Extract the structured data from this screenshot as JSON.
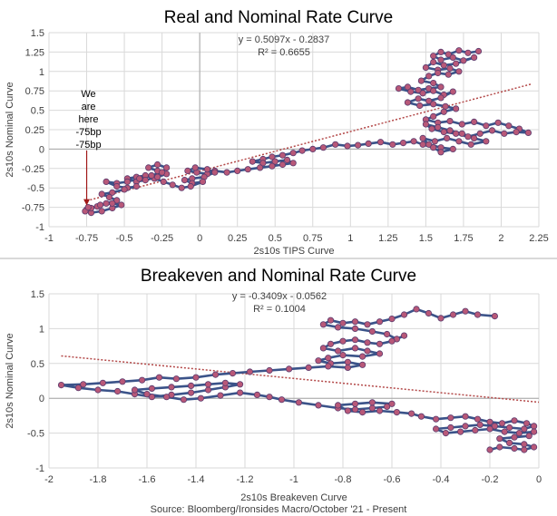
{
  "source": "Source: Bloomberg/Ironsides Macro/October '21 - Present",
  "colors": {
    "line": "#3b5389",
    "marker_fill": "#b85878",
    "marker_edge": "#5b3b6e",
    "trend": "#b34848",
    "grid": "#d9d9d9",
    "arrow": "#a01818"
  },
  "chart_data": [
    {
      "type": "scatter",
      "title": "Real and Nominal Rate Curve",
      "xlabel": "2s10s TIPS Curve",
      "ylabel": "2s10s Nominal Curve",
      "xlim": [
        -1,
        2.25
      ],
      "ylim": [
        -1,
        1.5
      ],
      "xticks": [
        "-1",
        "-0.75",
        "-0.5",
        "-0.25",
        "0",
        "0.25",
        "0.5",
        "0.75",
        "1",
        "1.25",
        "1.5",
        "1.75",
        "2",
        "2.25"
      ],
      "yticks": [
        "-1",
        "-0.75",
        "-0.5",
        "-0.25",
        "0",
        "0.25",
        "0.5",
        "0.75",
        "1",
        "1.25",
        "1.5"
      ],
      "equation": "y = 0.5097x - 0.2837",
      "r2": "R² = 0.6655",
      "trendline": {
        "slope": 0.5097,
        "intercept": -0.2837,
        "x_range": [
          -0.75,
          2.2
        ]
      },
      "annotation": {
        "lines": [
          "We",
          "are",
          "here",
          "-75bp",
          "-75bp"
        ],
        "x": -0.75,
        "y": -0.75
      },
      "points": [
        [
          1.85,
          1.26
        ],
        [
          1.78,
          1.24
        ],
        [
          1.72,
          1.27
        ],
        [
          1.65,
          1.22
        ],
        [
          1.6,
          1.25
        ],
        [
          1.55,
          1.2
        ],
        [
          1.6,
          1.15
        ],
        [
          1.68,
          1.18
        ],
        [
          1.75,
          1.14
        ],
        [
          1.82,
          1.18
        ],
        [
          1.7,
          1.1
        ],
        [
          1.62,
          1.08
        ],
        [
          1.55,
          1.12
        ],
        [
          1.5,
          1.05
        ],
        [
          1.58,
          1.02
        ],
        [
          1.66,
          1.04
        ],
        [
          1.72,
          1.0
        ],
        [
          1.65,
          0.96
        ],
        [
          1.58,
          0.98
        ],
        [
          1.52,
          0.94
        ],
        [
          1.47,
          0.88
        ],
        [
          1.55,
          0.85
        ],
        [
          1.6,
          0.8
        ],
        [
          1.52,
          0.78
        ],
        [
          1.45,
          0.76
        ],
        [
          1.38,
          0.8
        ],
        [
          1.32,
          0.78
        ],
        [
          1.4,
          0.74
        ],
        [
          1.48,
          0.72
        ],
        [
          1.55,
          0.75
        ],
        [
          1.62,
          0.7
        ],
        [
          1.68,
          0.74
        ],
        [
          1.6,
          0.66
        ],
        [
          1.52,
          0.62
        ],
        [
          1.45,
          0.65
        ],
        [
          1.38,
          0.6
        ],
        [
          1.46,
          0.56
        ],
        [
          1.55,
          0.58
        ],
        [
          1.63,
          0.55
        ],
        [
          1.7,
          0.52
        ],
        [
          1.62,
          0.48
        ],
        [
          1.55,
          0.42
        ],
        [
          1.5,
          0.38
        ],
        [
          1.58,
          0.34
        ],
        [
          1.66,
          0.36
        ],
        [
          1.74,
          0.32
        ],
        [
          1.82,
          0.35
        ],
        [
          1.9,
          0.3
        ],
        [
          1.98,
          0.34
        ],
        [
          2.05,
          0.3
        ],
        [
          2.12,
          0.26
        ],
        [
          2.18,
          0.21
        ],
        [
          2.1,
          0.22
        ],
        [
          2.02,
          0.2
        ],
        [
          1.94,
          0.24
        ],
        [
          1.86,
          0.2
        ],
        [
          1.78,
          0.16
        ],
        [
          1.7,
          0.2
        ],
        [
          1.62,
          0.22
        ],
        [
          1.54,
          0.26
        ],
        [
          1.5,
          0.32
        ],
        [
          1.58,
          0.28
        ],
        [
          1.66,
          0.24
        ],
        [
          1.74,
          0.2
        ],
        [
          1.82,
          0.14
        ],
        [
          1.9,
          0.1
        ],
        [
          1.8,
          0.06
        ],
        [
          1.72,
          0.1
        ],
        [
          1.64,
          0.14
        ],
        [
          1.56,
          0.1
        ],
        [
          1.48,
          0.14
        ],
        [
          1.52,
          0.06
        ],
        [
          1.6,
          0.02
        ],
        [
          1.68,
          0.0
        ],
        [
          1.6,
          -0.04
        ],
        [
          1.55,
          0.02
        ],
        [
          1.48,
          0.06
        ],
        [
          1.42,
          0.1
        ],
        [
          1.35,
          0.08
        ],
        [
          1.28,
          0.06
        ],
        [
          1.2,
          0.09
        ],
        [
          1.12,
          0.07
        ],
        [
          1.05,
          0.05
        ],
        [
          0.98,
          0.04
        ],
        [
          0.9,
          0.06
        ],
        [
          0.82,
          0.02
        ],
        [
          0.75,
          0.0
        ],
        [
          0.68,
          -0.02
        ],
        [
          0.62,
          -0.05
        ],
        [
          0.55,
          -0.08
        ],
        [
          0.48,
          -0.1
        ],
        [
          0.42,
          -0.13
        ],
        [
          0.35,
          -0.16
        ],
        [
          0.42,
          -0.18
        ],
        [
          0.5,
          -0.16
        ],
        [
          0.58,
          -0.14
        ],
        [
          0.62,
          -0.18
        ],
        [
          0.55,
          -0.2
        ],
        [
          0.48,
          -0.22
        ],
        [
          0.4,
          -0.24
        ],
        [
          0.32,
          -0.26
        ],
        [
          0.25,
          -0.28
        ],
        [
          0.18,
          -0.3
        ],
        [
          0.1,
          -0.28
        ],
        [
          0.05,
          -0.32
        ],
        [
          -0.02,
          -0.3
        ],
        [
          -0.08,
          -0.28
        ],
        [
          -0.03,
          -0.24
        ],
        [
          0.05,
          -0.26
        ],
        [
          0.1,
          -0.3
        ],
        [
          0.03,
          -0.36
        ],
        [
          -0.05,
          -0.38
        ],
        [
          -0.1,
          -0.4
        ],
        [
          -0.05,
          -0.44
        ],
        [
          0.02,
          -0.42
        ],
        [
          -0.06,
          -0.48
        ],
        [
          -0.12,
          -0.5
        ],
        [
          -0.18,
          -0.46
        ],
        [
          -0.24,
          -0.42
        ],
        [
          -0.3,
          -0.38
        ],
        [
          -0.36,
          -0.34
        ],
        [
          -0.42,
          -0.36
        ],
        [
          -0.48,
          -0.38
        ],
        [
          -0.42,
          -0.42
        ],
        [
          -0.36,
          -0.4
        ],
        [
          -0.28,
          -0.36
        ],
        [
          -0.22,
          -0.32
        ],
        [
          -0.28,
          -0.28
        ],
        [
          -0.34,
          -0.24
        ],
        [
          -0.28,
          -0.2
        ],
        [
          -0.22,
          -0.24
        ],
        [
          -0.25,
          -0.3
        ],
        [
          -0.32,
          -0.34
        ],
        [
          -0.4,
          -0.38
        ],
        [
          -0.48,
          -0.42
        ],
        [
          -0.55,
          -0.44
        ],
        [
          -0.62,
          -0.42
        ],
        [
          -0.55,
          -0.48
        ],
        [
          -0.48,
          -0.5
        ],
        [
          -0.42,
          -0.48
        ],
        [
          -0.5,
          -0.52
        ],
        [
          -0.58,
          -0.56
        ],
        [
          -0.65,
          -0.58
        ],
        [
          -0.6,
          -0.62
        ],
        [
          -0.55,
          -0.66
        ],
        [
          -0.62,
          -0.7
        ],
        [
          -0.68,
          -0.74
        ],
        [
          -0.75,
          -0.78
        ],
        [
          -0.72,
          -0.82
        ],
        [
          -0.65,
          -0.8
        ],
        [
          -0.58,
          -0.76
        ],
        [
          -0.52,
          -0.72
        ],
        [
          -0.58,
          -0.7
        ],
        [
          -0.66,
          -0.72
        ],
        [
          -0.72,
          -0.76
        ],
        [
          -0.76,
          -0.8
        ],
        [
          -0.74,
          -0.75
        ]
      ]
    },
    {
      "type": "scatter",
      "title": "Breakeven and Nominal Rate Curve",
      "xlabel": "2s10s Breakeven Curve",
      "ylabel": "2s10s Nominal Curve",
      "xlim": [
        -2,
        0
      ],
      "ylim": [
        -1,
        1.5
      ],
      "xticks": [
        "-2",
        "-1.8",
        "-1.6",
        "-1.4",
        "-1.2",
        "-1",
        "-0.8",
        "-0.6",
        "-0.4",
        "-0.2",
        "0"
      ],
      "yticks": [
        "-1",
        "-0.5",
        "0",
        "0.5",
        "1",
        "1.5"
      ],
      "equation": "y = -0.3409x - 0.0562",
      "r2": "R² = 0.1004",
      "trendline": {
        "slope": -0.3409,
        "intercept": -0.0562,
        "x_range": [
          -1.95,
          0
        ]
      },
      "points": [
        [
          -0.18,
          1.18
        ],
        [
          -0.25,
          1.2
        ],
        [
          -0.3,
          1.25
        ],
        [
          -0.35,
          1.2
        ],
        [
          -0.4,
          1.15
        ],
        [
          -0.45,
          1.22
        ],
        [
          -0.5,
          1.28
        ],
        [
          -0.55,
          1.2
        ],
        [
          -0.6,
          1.14
        ],
        [
          -0.65,
          1.1
        ],
        [
          -0.7,
          1.06
        ],
        [
          -0.75,
          1.1
        ],
        [
          -0.8,
          1.08
        ],
        [
          -0.85,
          1.12
        ],
        [
          -0.88,
          1.06
        ],
        [
          -0.82,
          1.02
        ],
        [
          -0.75,
          1.0
        ],
        [
          -0.68,
          0.96
        ],
        [
          -0.62,
          0.92
        ],
        [
          -0.58,
          0.85
        ],
        [
          -0.55,
          0.9
        ],
        [
          -0.6,
          0.82
        ],
        [
          -0.65,
          0.78
        ],
        [
          -0.7,
          0.8
        ],
        [
          -0.75,
          0.84
        ],
        [
          -0.8,
          0.82
        ],
        [
          -0.85,
          0.78
        ],
        [
          -0.88,
          0.72
        ],
        [
          -0.82,
          0.68
        ],
        [
          -0.75,
          0.72
        ],
        [
          -0.7,
          0.68
        ],
        [
          -0.65,
          0.64
        ],
        [
          -0.72,
          0.6
        ],
        [
          -0.8,
          0.62
        ],
        [
          -0.86,
          0.58
        ],
        [
          -0.9,
          0.54
        ],
        [
          -0.85,
          0.5
        ],
        [
          -0.78,
          0.52
        ],
        [
          -0.72,
          0.48
        ],
        [
          -0.78,
          0.44
        ],
        [
          -0.86,
          0.46
        ],
        [
          -0.94,
          0.44
        ],
        [
          -1.02,
          0.42
        ],
        [
          -1.1,
          0.4
        ],
        [
          -1.18,
          0.38
        ],
        [
          -1.25,
          0.36
        ],
        [
          -1.32,
          0.34
        ],
        [
          -1.4,
          0.3
        ],
        [
          -1.48,
          0.28
        ],
        [
          -1.55,
          0.3
        ],
        [
          -1.62,
          0.26
        ],
        [
          -1.7,
          0.24
        ],
        [
          -1.78,
          0.22
        ],
        [
          -1.86,
          0.2
        ],
        [
          -1.95,
          0.19
        ],
        [
          -1.88,
          0.15
        ],
        [
          -1.8,
          0.12
        ],
        [
          -1.72,
          0.1
        ],
        [
          -1.65,
          0.06
        ],
        [
          -1.58,
          0.02
        ],
        [
          -1.5,
          0.05
        ],
        [
          -1.42,
          0.08
        ],
        [
          -1.35,
          0.12
        ],
        [
          -1.28,
          0.16
        ],
        [
          -1.22,
          0.2
        ],
        [
          -1.28,
          0.22
        ],
        [
          -1.35,
          0.2
        ],
        [
          -1.42,
          0.18
        ],
        [
          -1.5,
          0.16
        ],
        [
          -1.58,
          0.14
        ],
        [
          -1.65,
          0.12
        ],
        [
          -1.6,
          0.06
        ],
        [
          -1.52,
          0.02
        ],
        [
          -1.45,
          -0.02
        ],
        [
          -1.38,
          0.0
        ],
        [
          -1.3,
          0.04
        ],
        [
          -1.22,
          0.08
        ],
        [
          -1.15,
          0.05
        ],
        [
          -1.1,
          0.02
        ],
        [
          -1.05,
          -0.02
        ],
        [
          -0.98,
          -0.06
        ],
        [
          -0.9,
          -0.1
        ],
        [
          -0.82,
          -0.14
        ],
        [
          -0.75,
          -0.16
        ],
        [
          -0.68,
          -0.14
        ],
        [
          -0.62,
          -0.12
        ],
        [
          -0.6,
          -0.08
        ],
        [
          -0.68,
          -0.06
        ],
        [
          -0.75,
          -0.08
        ],
        [
          -0.82,
          -0.1
        ],
        [
          -0.78,
          -0.18
        ],
        [
          -0.72,
          -0.2
        ],
        [
          -0.65,
          -0.18
        ],
        [
          -0.58,
          -0.2
        ],
        [
          -0.52,
          -0.22
        ],
        [
          -0.48,
          -0.26
        ],
        [
          -0.42,
          -0.3
        ],
        [
          -0.36,
          -0.28
        ],
        [
          -0.3,
          -0.26
        ],
        [
          -0.25,
          -0.3
        ],
        [
          -0.2,
          -0.34
        ],
        [
          -0.15,
          -0.36
        ],
        [
          -0.1,
          -0.32
        ],
        [
          -0.05,
          -0.36
        ],
        [
          -0.02,
          -0.4
        ],
        [
          -0.06,
          -0.44
        ],
        [
          -0.12,
          -0.42
        ],
        [
          -0.18,
          -0.4
        ],
        [
          -0.24,
          -0.38
        ],
        [
          -0.3,
          -0.4
        ],
        [
          -0.36,
          -0.42
        ],
        [
          -0.42,
          -0.44
        ],
        [
          -0.38,
          -0.5
        ],
        [
          -0.32,
          -0.48
        ],
        [
          -0.26,
          -0.46
        ],
        [
          -0.2,
          -0.44
        ],
        [
          -0.14,
          -0.48
        ],
        [
          -0.08,
          -0.5
        ],
        [
          -0.02,
          -0.48
        ],
        [
          -0.04,
          -0.54
        ],
        [
          -0.1,
          -0.56
        ],
        [
          -0.16,
          -0.58
        ],
        [
          -0.12,
          -0.64
        ],
        [
          -0.06,
          -0.66
        ],
        [
          -0.02,
          -0.7
        ],
        [
          -0.06,
          -0.74
        ],
        [
          -0.1,
          -0.72
        ],
        [
          -0.16,
          -0.7
        ],
        [
          -0.2,
          -0.74
        ]
      ]
    }
  ]
}
